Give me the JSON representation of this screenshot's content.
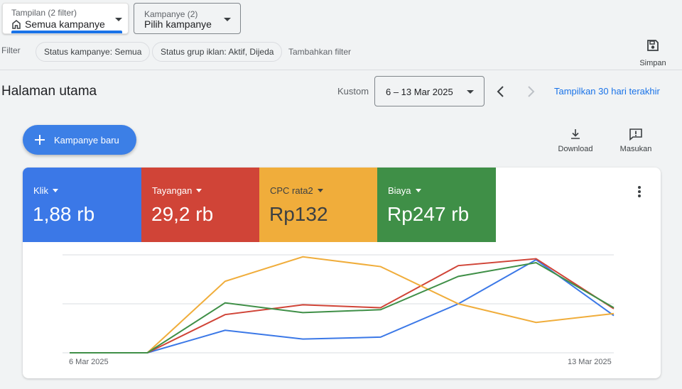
{
  "view_select": {
    "label": "Tampilan (2 filter)",
    "value": "Semua kampanye"
  },
  "campaign_select": {
    "label": "Kampanye (2)",
    "value": "Pilih kampanye"
  },
  "filters": {
    "label": "Filter",
    "chips": [
      "Status kampanye: Semua",
      "Status grup iklan: Aktif, Dijeda"
    ],
    "add_label": "Tambahkan filter"
  },
  "save_label": "Simpan",
  "page_title": "Halaman utama",
  "date": {
    "mode": "Kustom",
    "range": "6 – 13 Mar 2025",
    "last30": "Tampilkan 30 hari terakhir"
  },
  "new_campaign": "Kampanye baru",
  "tools": {
    "download": "Download",
    "feedback": "Masukan"
  },
  "metrics": [
    {
      "name": "Klik",
      "value": "1,88 rb",
      "color": "#3b78e7"
    },
    {
      "name": "Tayangan",
      "value": "29,2 rb",
      "color": "#d04437"
    },
    {
      "name": "CPC rata2",
      "value": "Rp132",
      "color": "#f0ad3b"
    },
    {
      "name": "Biaya",
      "value": "Rp247 rb",
      "color": "#3f8f47"
    }
  ],
  "chart_data": {
    "type": "line",
    "x": [
      "6 Mar 2025",
      "7 Mar 2025",
      "8 Mar 2025",
      "9 Mar 2025",
      "10 Mar 2025",
      "11 Mar 2025",
      "12 Mar 2025",
      "13 Mar 2025"
    ],
    "x_tick_labels": [
      "6 Mar 2025",
      "13 Mar 2025"
    ],
    "ylim": [
      0,
      100
    ],
    "grid": true,
    "series": [
      {
        "name": "Klik",
        "color": "#3b78e7",
        "values": [
          0,
          0,
          23,
          14,
          16,
          50,
          95,
          38
        ]
      },
      {
        "name": "Tayangan",
        "color": "#d04437",
        "values": [
          0,
          0,
          39,
          49,
          46,
          89,
          96,
          45
        ]
      },
      {
        "name": "CPC rata2",
        "color": "#f0ad3b",
        "values": [
          0,
          0,
          73,
          98,
          88,
          50,
          31,
          40
        ]
      },
      {
        "name": "Biaya",
        "color": "#3f8f47",
        "values": [
          0,
          0,
          51,
          41,
          44,
          78,
          92,
          46
        ]
      }
    ]
  }
}
